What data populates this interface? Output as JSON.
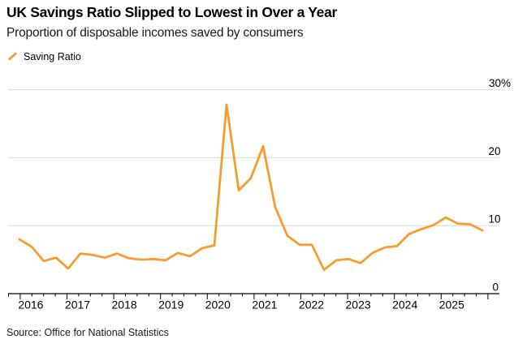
{
  "header": {
    "title": "UK Savings Ratio Slipped to Lowest in Over a Year",
    "subtitle": "Proportion of disposable incomes saved by consumers"
  },
  "legend": {
    "label": "Saving Ratio",
    "marker_color": "#F79D2F"
  },
  "source": "Source: Office for National Statistics",
  "chart_data": {
    "type": "line",
    "title": "UK Savings Ratio Slipped to Lowest in Over a Year",
    "subtitle": "Proportion of disposable incomes saved by consumers",
    "series_name": "Saving Ratio",
    "unit": "%",
    "x": [
      "2016 Q1",
      "2016 Q2",
      "2016 Q3",
      "2016 Q4",
      "2017 Q1",
      "2017 Q2",
      "2017 Q3",
      "2017 Q4",
      "2018 Q1",
      "2018 Q2",
      "2018 Q3",
      "2018 Q4",
      "2019 Q1",
      "2019 Q2",
      "2019 Q3",
      "2019 Q4",
      "2020 Q1",
      "2020 Q2",
      "2020 Q3",
      "2020 Q4",
      "2021 Q1",
      "2021 Q2",
      "2021 Q3",
      "2021 Q4",
      "2022 Q1",
      "2022 Q2",
      "2022 Q3",
      "2022 Q4",
      "2023 Q1",
      "2023 Q2",
      "2023 Q3",
      "2023 Q4",
      "2024 Q1",
      "2024 Q2",
      "2024 Q3",
      "2024 Q4",
      "2025 Q1",
      "2025 Q2",
      "2025 Q3"
    ],
    "values": [
      8.0,
      6.9,
      4.8,
      5.3,
      3.7,
      5.9,
      5.7,
      5.3,
      5.9,
      5.2,
      5.0,
      5.1,
      4.9,
      6.0,
      5.5,
      6.7,
      7.1,
      27.8,
      15.2,
      17.0,
      21.7,
      12.7,
      8.5,
      7.2,
      7.2,
      3.5,
      4.9,
      5.1,
      4.5,
      6.0,
      6.8,
      7.0,
      8.8,
      9.5,
      10.1,
      11.2,
      10.3,
      10.2,
      9.3
    ],
    "x_tick_labels": [
      "2016",
      "2017",
      "2018",
      "2019",
      "2020",
      "2021",
      "2022",
      "2023",
      "2024",
      "2025"
    ],
    "y_ticks": {
      "values": [
        30,
        20,
        10,
        0
      ],
      "labels": [
        "30%",
        "20",
        "10",
        "0"
      ]
    },
    "ylim": [
      0,
      30
    ],
    "line_color": "#F79D2F",
    "grid_color": "#D8D8D8",
    "axis_color": "#000000",
    "grid": "horizontal",
    "legend_position": "top-left"
  }
}
